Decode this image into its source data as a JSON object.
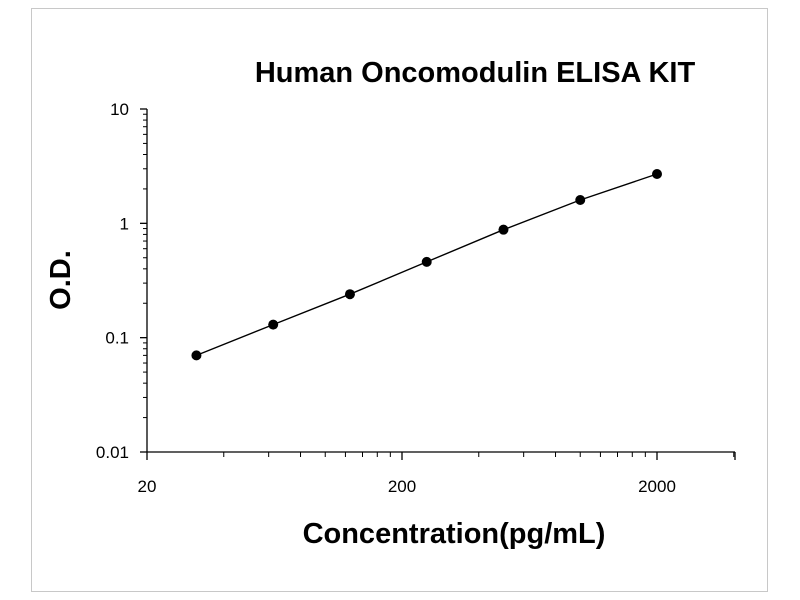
{
  "chart_data": {
    "type": "line",
    "title": "Human Oncomodulin ELISA KIT",
    "xlabel": "Concentration(pg/mL)",
    "ylabel": "O.D.",
    "xscale": "log",
    "yscale": "log",
    "xlim": [
      20,
      4000
    ],
    "ylim": [
      0.01,
      10
    ],
    "xticks": [
      {
        "value": 20,
        "label": "20"
      },
      {
        "value": 200,
        "label": "200"
      },
      {
        "value": 2000,
        "label": "2000"
      }
    ],
    "yticks": [
      {
        "value": 0.01,
        "label": "0.01"
      },
      {
        "value": 0.1,
        "label": "0.1"
      },
      {
        "value": 1,
        "label": "1"
      },
      {
        "value": 10,
        "label": "10"
      }
    ],
    "grid": false,
    "legend": "none",
    "series": [
      {
        "x": [
          31.25,
          62.5,
          125,
          250,
          500,
          1000,
          2000
        ],
        "y": [
          0.07,
          0.13,
          0.24,
          0.46,
          0.88,
          1.6,
          2.7
        ]
      }
    ],
    "colors": {
      "line": "#000000",
      "marker": "#000000",
      "axis": "#000000"
    }
  }
}
